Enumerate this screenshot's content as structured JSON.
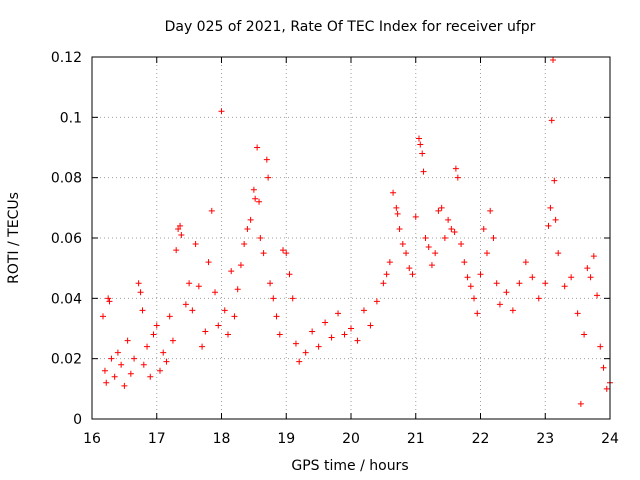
{
  "chart_data": {
    "type": "scatter",
    "title": "Day 025 of 2021, Rate Of TEC Index for receiver ufpr",
    "xlabel": "GPS time / hours",
    "ylabel": "ROTI / TECUs",
    "xlim": [
      16,
      24
    ],
    "ylim": [
      0,
      0.12
    ],
    "xticks": [
      "16",
      "17",
      "18",
      "19",
      "20",
      "21",
      "22",
      "23",
      "24"
    ],
    "yticks": [
      "0",
      "0.02",
      "0.04",
      "0.06",
      "0.08",
      "0.1",
      "0.12"
    ],
    "grid": true,
    "marker": "plus",
    "marker_color": "#ff0000",
    "series": [
      {
        "name": "ROTI",
        "points": [
          [
            16.17,
            0.034
          ],
          [
            16.2,
            0.016
          ],
          [
            16.22,
            0.012
          ],
          [
            16.25,
            0.04
          ],
          [
            16.27,
            0.039
          ],
          [
            16.3,
            0.02
          ],
          [
            16.35,
            0.014
          ],
          [
            16.4,
            0.022
          ],
          [
            16.45,
            0.018
          ],
          [
            16.5,
            0.011
          ],
          [
            16.55,
            0.026
          ],
          [
            16.6,
            0.015
          ],
          [
            16.65,
            0.02
          ],
          [
            16.72,
            0.045
          ],
          [
            16.75,
            0.042
          ],
          [
            16.78,
            0.036
          ],
          [
            16.8,
            0.018
          ],
          [
            16.85,
            0.024
          ],
          [
            16.9,
            0.014
          ],
          [
            16.95,
            0.028
          ],
          [
            17.0,
            0.031
          ],
          [
            17.05,
            0.016
          ],
          [
            17.1,
            0.022
          ],
          [
            17.15,
            0.019
          ],
          [
            17.2,
            0.034
          ],
          [
            17.25,
            0.026
          ],
          [
            17.3,
            0.056
          ],
          [
            17.33,
            0.063
          ],
          [
            17.36,
            0.064
          ],
          [
            17.38,
            0.061
          ],
          [
            17.45,
            0.038
          ],
          [
            17.5,
            0.045
          ],
          [
            17.55,
            0.036
          ],
          [
            17.6,
            0.058
          ],
          [
            17.65,
            0.044
          ],
          [
            17.7,
            0.024
          ],
          [
            17.75,
            0.029
          ],
          [
            17.8,
            0.052
          ],
          [
            17.85,
            0.069
          ],
          [
            17.9,
            0.042
          ],
          [
            17.95,
            0.031
          ],
          [
            18.0,
            0.102
          ],
          [
            18.05,
            0.036
          ],
          [
            18.1,
            0.028
          ],
          [
            18.15,
            0.049
          ],
          [
            18.2,
            0.034
          ],
          [
            18.25,
            0.043
          ],
          [
            18.3,
            0.051
          ],
          [
            18.35,
            0.058
          ],
          [
            18.4,
            0.063
          ],
          [
            18.45,
            0.066
          ],
          [
            18.5,
            0.076
          ],
          [
            18.52,
            0.073
          ],
          [
            18.55,
            0.09
          ],
          [
            18.58,
            0.072
          ],
          [
            18.6,
            0.06
          ],
          [
            18.65,
            0.055
          ],
          [
            18.7,
            0.086
          ],
          [
            18.72,
            0.08
          ],
          [
            18.75,
            0.045
          ],
          [
            18.8,
            0.04
          ],
          [
            18.85,
            0.034
          ],
          [
            18.9,
            0.028
          ],
          [
            18.95,
            0.056
          ],
          [
            19.0,
            0.055
          ],
          [
            19.05,
            0.048
          ],
          [
            19.1,
            0.04
          ],
          [
            19.15,
            0.025
          ],
          [
            19.2,
            0.019
          ],
          [
            19.3,
            0.022
          ],
          [
            19.4,
            0.029
          ],
          [
            19.5,
            0.024
          ],
          [
            19.6,
            0.032
          ],
          [
            19.7,
            0.027
          ],
          [
            19.8,
            0.035
          ],
          [
            19.9,
            0.028
          ],
          [
            20.0,
            0.03
          ],
          [
            20.1,
            0.026
          ],
          [
            20.2,
            0.036
          ],
          [
            20.3,
            0.031
          ],
          [
            20.4,
            0.039
          ],
          [
            20.5,
            0.045
          ],
          [
            20.55,
            0.048
          ],
          [
            20.6,
            0.052
          ],
          [
            20.65,
            0.075
          ],
          [
            20.7,
            0.07
          ],
          [
            20.72,
            0.068
          ],
          [
            20.75,
            0.063
          ],
          [
            20.8,
            0.058
          ],
          [
            20.85,
            0.055
          ],
          [
            20.9,
            0.05
          ],
          [
            20.95,
            0.048
          ],
          [
            21.0,
            0.067
          ],
          [
            21.05,
            0.093
          ],
          [
            21.07,
            0.091
          ],
          [
            21.1,
            0.088
          ],
          [
            21.12,
            0.082
          ],
          [
            21.15,
            0.06
          ],
          [
            21.2,
            0.057
          ],
          [
            21.25,
            0.051
          ],
          [
            21.3,
            0.055
          ],
          [
            21.35,
            0.069
          ],
          [
            21.4,
            0.07
          ],
          [
            21.45,
            0.06
          ],
          [
            21.5,
            0.066
          ],
          [
            21.55,
            0.063
          ],
          [
            21.6,
            0.062
          ],
          [
            21.62,
            0.083
          ],
          [
            21.65,
            0.08
          ],
          [
            21.7,
            0.058
          ],
          [
            21.75,
            0.052
          ],
          [
            21.8,
            0.047
          ],
          [
            21.85,
            0.044
          ],
          [
            21.9,
            0.04
          ],
          [
            21.95,
            0.035
          ],
          [
            22.0,
            0.048
          ],
          [
            22.05,
            0.063
          ],
          [
            22.1,
            0.055
          ],
          [
            22.15,
            0.069
          ],
          [
            22.2,
            0.06
          ],
          [
            22.25,
            0.045
          ],
          [
            22.3,
            0.038
          ],
          [
            22.4,
            0.042
          ],
          [
            22.5,
            0.036
          ],
          [
            22.6,
            0.045
          ],
          [
            22.7,
            0.052
          ],
          [
            22.8,
            0.047
          ],
          [
            22.9,
            0.04
          ],
          [
            23.0,
            0.045
          ],
          [
            23.05,
            0.064
          ],
          [
            23.08,
            0.07
          ],
          [
            23.1,
            0.099
          ],
          [
            23.12,
            0.119
          ],
          [
            23.14,
            0.079
          ],
          [
            23.16,
            0.066
          ],
          [
            23.2,
            0.055
          ],
          [
            23.3,
            0.044
          ],
          [
            23.4,
            0.047
          ],
          [
            23.5,
            0.035
          ],
          [
            23.55,
            0.005
          ],
          [
            23.6,
            0.028
          ],
          [
            23.65,
            0.05
          ],
          [
            23.7,
            0.047
          ],
          [
            23.75,
            0.054
          ],
          [
            23.8,
            0.041
          ],
          [
            23.85,
            0.024
          ],
          [
            23.9,
            0.017
          ],
          [
            23.95,
            0.01
          ],
          [
            24.0,
            0.012
          ]
        ]
      }
    ]
  }
}
